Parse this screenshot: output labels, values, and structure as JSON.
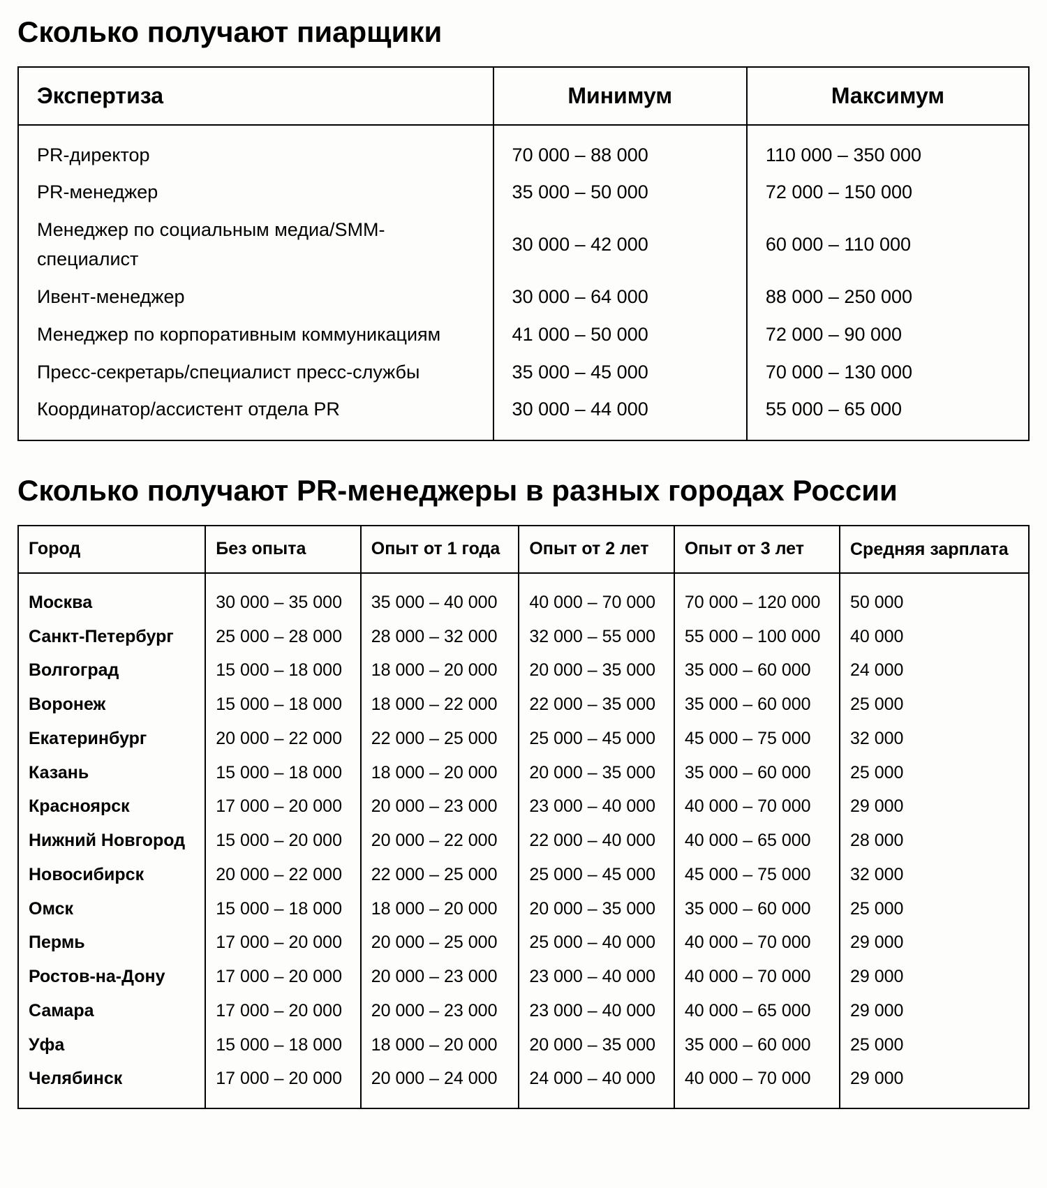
{
  "section1": {
    "title": "Сколько получают пиарщики",
    "columns": [
      "Экспертиза",
      "Минимум",
      "Максимум"
    ],
    "rows": [
      [
        "PR-директор",
        "70 000 – 88 000",
        "110 000 – 350 000"
      ],
      [
        "PR-менеджер",
        "35 000 – 50 000",
        "72 000 – 150 000"
      ],
      [
        "Менеджер по социальным медиа/SMM-специалист",
        "30 000 – 42 000",
        "60 000 – 110 000"
      ],
      [
        "Ивент-менеджер",
        "30 000 – 64 000",
        "88 000 – 250 000"
      ],
      [
        "Менеджер по корпоративным коммуникациям",
        "41 000 – 50 000",
        "72 000 – 90 000"
      ],
      [
        "Пресс-секретарь/специалист пресс-службы",
        "35 000 – 45 000",
        "70 000 – 130 000"
      ],
      [
        "Координатор/ассистент отдела PR",
        "30 000 – 44 000",
        "55 000 – 65 000"
      ]
    ],
    "col_widths_pct": [
      47,
      25,
      28
    ],
    "header_fontsize": 32,
    "cell_fontsize": 27,
    "border_color": "#000000",
    "background_color": "#fdfdfb"
  },
  "section2": {
    "title": "Сколько получают PR-менеджеры в разных городах России",
    "columns": [
      "Город",
      "Без опыта",
      "Опыт от 1 года",
      "Опыт от 2 лет",
      "Опыт от 3 лет",
      "Средняя зарплата"
    ],
    "rows": [
      [
        "Москва",
        "30 000 – 35 000",
        "35 000 – 40 000",
        "40 000 – 70 000",
        "70 000 – 120 000",
        "50 000"
      ],
      [
        "Санкт-Петербург",
        "25 000 – 28 000",
        "28 000 – 32 000",
        "32 000 – 55 000",
        "55 000 – 100 000",
        "40 000"
      ],
      [
        "Волгоград",
        "15 000 – 18 000",
        "18 000 – 20 000",
        "20 000 – 35 000",
        "35 000 – 60 000",
        "24 000"
      ],
      [
        "Воронеж",
        "15 000 – 18 000",
        "18 000 – 22 000",
        "22 000 – 35 000",
        "35 000 – 60 000",
        "25 000"
      ],
      [
        "Екатеринбург",
        "20 000 – 22 000",
        "22 000 – 25 000",
        "25 000 – 45 000",
        "45 000 – 75 000",
        "32 000"
      ],
      [
        "Казань",
        "15 000 – 18 000",
        "18 000 – 20 000",
        "20 000 – 35 000",
        "35 000 – 60 000",
        "25 000"
      ],
      [
        "Красноярск",
        "17 000 – 20 000",
        "20 000 – 23 000",
        "23 000 – 40 000",
        "40 000 – 70 000",
        "29 000"
      ],
      [
        "Нижний Новгород",
        "15 000 – 20 000",
        "20 000 – 22 000",
        "22 000 – 40 000",
        "40 000 – 65 000",
        "28 000"
      ],
      [
        "Новосибирск",
        "20 000 – 22 000",
        "22 000 – 25 000",
        "25 000 – 45 000",
        "45 000 – 75 000",
        "32 000"
      ],
      [
        "Омск",
        "15 000 – 18 000",
        "18 000 – 20 000",
        "20 000 – 35 000",
        "35 000 – 60 000",
        "25 000"
      ],
      [
        "Пермь",
        "17 000 – 20 000",
        "20 000 – 25 000",
        "25 000 – 40 000",
        "40 000 – 70 000",
        "29 000"
      ],
      [
        "Ростов-на-Дону",
        "17 000 – 20 000",
        "20 000 – 23 000",
        "23 000 – 40 000",
        "40 000 – 70 000",
        "29 000"
      ],
      [
        "Самара",
        "17 000 – 20 000",
        "20 000 – 23 000",
        "23 000 – 40 000",
        "40 000 – 65 000",
        "29 000"
      ],
      [
        "Уфа",
        "15 000 – 18 000",
        "18 000 – 20 000",
        "20 000 – 35 000",
        "35 000 – 60 000",
        "25 000"
      ],
      [
        "Челябинск",
        "17 000 – 20 000",
        "20 000 – 24 000",
        "24 000 – 40 000",
        "40 000 – 70 000",
        "29 000"
      ]
    ],
    "header_fontsize": 25,
    "cell_fontsize": 25,
    "border_color": "#000000",
    "background_color": "#fdfdfb"
  },
  "title_fontsize": 42,
  "font_family": "Arial, Helvetica, sans-serif"
}
